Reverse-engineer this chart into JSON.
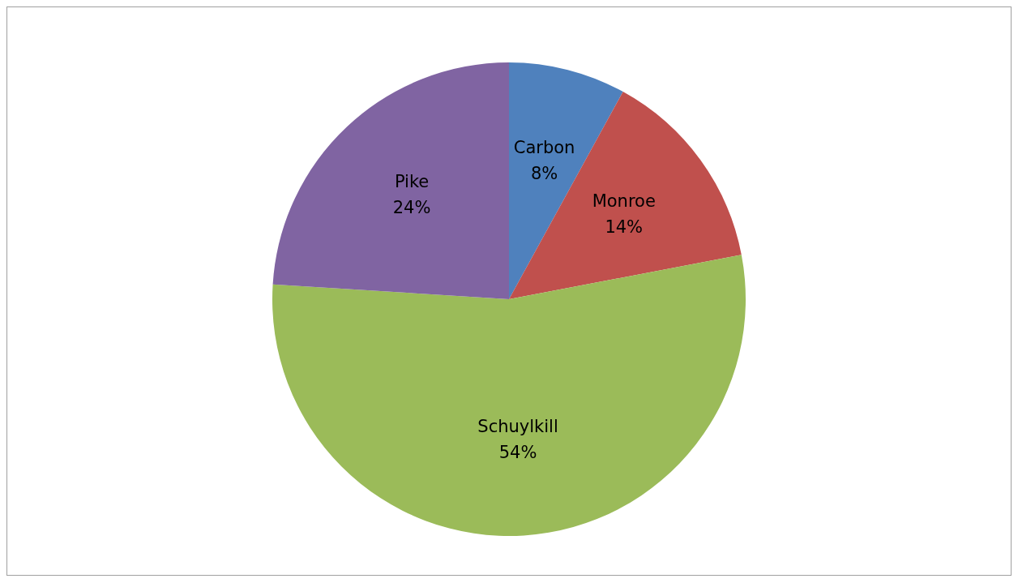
{
  "chart_data": {
    "type": "pie",
    "categories": [
      "Carbon",
      "Monroe",
      "Schuylkill",
      "Pike"
    ],
    "values": [
      8,
      14,
      54,
      24
    ],
    "colors": [
      "#4f81bd",
      "#c0504d",
      "#9bbb59",
      "#8064a2"
    ],
    "value_labels": [
      "8%",
      "14%",
      "54%",
      "24%"
    ],
    "legend": false
  }
}
